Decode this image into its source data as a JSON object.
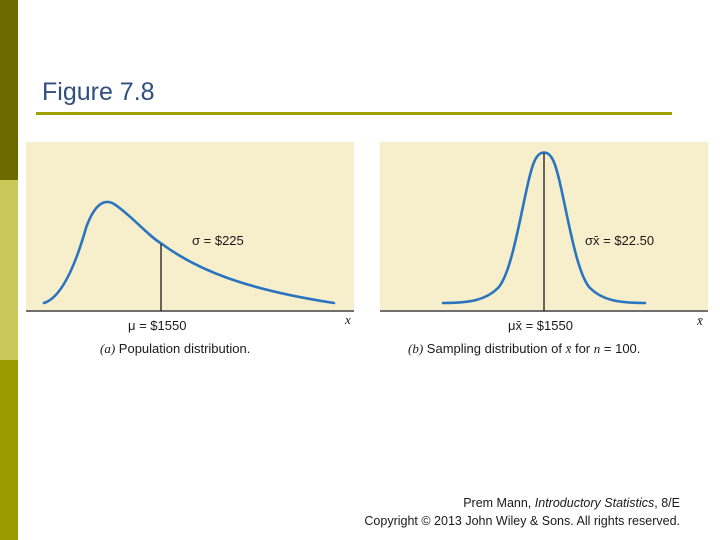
{
  "slide": {
    "title": "Figure 7.8",
    "colors": {
      "curve": "#2b74c0",
      "panel": "#f7efcc",
      "rule": "#a0a000"
    }
  },
  "panel_a": {
    "sigma_label": "σ = $225",
    "mu_label": "μ = $1550",
    "axis_var": "x",
    "caption_letter": "(a)",
    "caption_text": "Population distribution."
  },
  "panel_b": {
    "sigma_label": "σx̄ = $22.50",
    "mu_label": "μx̄ = $1550",
    "axis_var": "x̄",
    "caption_letter": "(b)",
    "caption_text_1": "Sampling distribution of",
    "caption_var": "x̄",
    "caption_text_2": "for",
    "caption_n": "n",
    "caption_text_3": "= 100."
  },
  "credit": {
    "author": "Prem Mann,",
    "book": "Introductory Statistics",
    "edition": ", 8/E",
    "copyright": "Copyright © 2013 John Wiley & Sons. All rights reserved."
  }
}
